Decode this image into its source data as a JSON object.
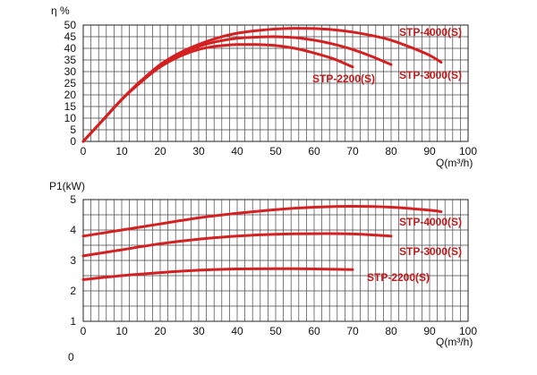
{
  "chart_data": [
    {
      "type": "line",
      "ylabel": "η %",
      "xlabel": "Q(m³/h)",
      "xlim": [
        0,
        100
      ],
      "ylim": [
        0,
        50
      ],
      "x_ticks": [
        "0",
        "10",
        "20",
        "30",
        "40",
        "50",
        "60",
        "70",
        "80",
        "90",
        "100"
      ],
      "y_ticks": [
        "0",
        "5",
        "10",
        "15",
        "20",
        "25",
        "30",
        "35",
        "40",
        "45",
        "50"
      ],
      "grid": true,
      "series": [
        {
          "name": "STP-2200(S)",
          "points": [
            [
              0,
              0
            ],
            [
              5,
              9
            ],
            [
              10,
              18
            ],
            [
              15,
              25.5
            ],
            [
              20,
              32
            ],
            [
              25,
              36.5
            ],
            [
              30,
              39.5
            ],
            [
              35,
              41
            ],
            [
              40,
              41.6
            ],
            [
              45,
              41.6
            ],
            [
              50,
              41.2
            ],
            [
              55,
              40
            ],
            [
              60,
              38
            ],
            [
              65,
              35.5
            ],
            [
              70,
              32
            ]
          ]
        },
        {
          "name": "STP-3000(S)",
          "points": [
            [
              0,
              0
            ],
            [
              5,
              9
            ],
            [
              10,
              18
            ],
            [
              15,
              26
            ],
            [
              20,
              32.5
            ],
            [
              25,
              37.5
            ],
            [
              30,
              40.8
            ],
            [
              35,
              43
            ],
            [
              40,
              44.3
            ],
            [
              45,
              44.8
            ],
            [
              50,
              45
            ],
            [
              55,
              44.6
            ],
            [
              60,
              43.5
            ],
            [
              65,
              41.8
            ],
            [
              70,
              39.5
            ],
            [
              75,
              36.5
            ],
            [
              80,
              33
            ]
          ]
        },
        {
          "name": "STP-4000(S)",
          "points": [
            [
              0,
              0
            ],
            [
              5,
              9
            ],
            [
              10,
              18
            ],
            [
              15,
              26
            ],
            [
              20,
              33
            ],
            [
              25,
              38
            ],
            [
              30,
              41.7
            ],
            [
              35,
              44.5
            ],
            [
              40,
              46.5
            ],
            [
              45,
              47.6
            ],
            [
              50,
              48.3
            ],
            [
              55,
              48.6
            ],
            [
              60,
              48.5
            ],
            [
              65,
              48
            ],
            [
              70,
              47
            ],
            [
              75,
              45.5
            ],
            [
              80,
              43.5
            ],
            [
              85,
              40.5
            ],
            [
              90,
              37
            ],
            [
              93,
              34
            ]
          ]
        }
      ]
    },
    {
      "type": "line",
      "ylabel": "P1(kW)",
      "xlabel": "Q(m³/h)",
      "xlim": [
        0,
        100
      ],
      "ylim": [
        1,
        5
      ],
      "x_ticks": [
        "0",
        "10",
        "20",
        "30",
        "40",
        "50",
        "60",
        "70",
        "80",
        "90",
        "100"
      ],
      "y_ticks": [
        "1",
        "2",
        "3",
        "4",
        "5"
      ],
      "extra_label": "0",
      "grid": true,
      "series": [
        {
          "name": "STP-2200(S)",
          "points": [
            [
              0,
              2.37
            ],
            [
              10,
              2.5
            ],
            [
              20,
              2.6
            ],
            [
              30,
              2.68
            ],
            [
              40,
              2.72
            ],
            [
              50,
              2.73
            ],
            [
              60,
              2.72
            ],
            [
              70,
              2.7
            ]
          ]
        },
        {
          "name": "STP-3000(S)",
          "points": [
            [
              0,
              3.15
            ],
            [
              10,
              3.35
            ],
            [
              20,
              3.55
            ],
            [
              30,
              3.7
            ],
            [
              40,
              3.8
            ],
            [
              50,
              3.86
            ],
            [
              60,
              3.88
            ],
            [
              70,
              3.87
            ],
            [
              80,
              3.8
            ]
          ]
        },
        {
          "name": "STP-4000(S)",
          "points": [
            [
              0,
              3.8
            ],
            [
              10,
              4.0
            ],
            [
              20,
              4.2
            ],
            [
              30,
              4.4
            ],
            [
              40,
              4.55
            ],
            [
              50,
              4.67
            ],
            [
              60,
              4.75
            ],
            [
              70,
              4.78
            ],
            [
              80,
              4.75
            ],
            [
              90,
              4.65
            ],
            [
              93,
              4.6
            ]
          ]
        }
      ]
    }
  ]
}
